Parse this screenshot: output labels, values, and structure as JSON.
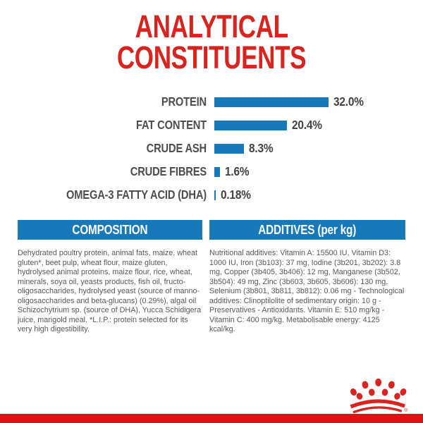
{
  "page": {
    "title_line1": "ANALYTICAL",
    "title_line2": "CONSTITUENTS"
  },
  "chart_data": {
    "type": "bar",
    "orientation": "horizontal",
    "title": "ANALYTICAL CONSTITUENTS",
    "categories": [
      "PROTEIN",
      "FAT CONTENT",
      "CRUDE ASH",
      "CRUDE FIBRES",
      "OMEGA-3 FATTY ACID (DHA)"
    ],
    "values": [
      32.0,
      20.4,
      8.3,
      1.6,
      0.18
    ],
    "value_labels": [
      "32.0%",
      "20.4%",
      "8.3%",
      "1.6%",
      "0.18%"
    ],
    "unit": "%",
    "xlim": [
      0,
      34
    ],
    "grid": false,
    "legend": false,
    "bar_color": "#1879b8"
  },
  "sections": {
    "composition": {
      "header": "COMPOSITION",
      "body": "Dehydrated poultry protein, animal fats, maize, wheat gluten*, beet pulp, wheat flour, maize gluten, hydrolysed animal proteins, maize flour, rice, wheat, minerals, soya oil, yeasts products, fish oil, fructo-oligosaccharides, hydrolysed yeast (source of manno-oligosaccharides and beta-glucans) (0.29%), algal oil Schizochytrium sp. (source of DHA), Yucca Schidigera juice, marigold meal. *L.I.P.: protein selected for its very high digestibility."
    },
    "additives": {
      "header": "ADDITIVES (per kg)",
      "body": "Nutritional additives: Vitamin A: 15500 IU, Vitamin D3: 1000 IU, Iron (3b103): 37 mg, Iodine (3b201, 3b202): 3.8 mg, Copper (3b405, 3b406): 12 mg, Manganese (3b502, 3b504): 49 mg, Zinc (3b603, 3b605, 3b606): 130 mg, Selenium (3b801, 3b811, 3b812): 0.06 mg - Technological additives: Clinoptilolite of sedimentary origin: 10 g - Preservatives - Antioxidants. Vitamin E: 510 mg/kg - Vitamin C: 400 mg/kg. Metabolisable energy: 4125 kcal/kg."
    }
  },
  "branding": {
    "logo": "royal-canin-crown",
    "registered_mark": "®"
  },
  "colors": {
    "accent_red": "#d6251f",
    "bottom_bar_red": "#e01113",
    "bar_blue": "#1879b8",
    "header_blue": "#1879b8",
    "label_gray": "#4d4d4f",
    "body_gray": "#57575a"
  }
}
